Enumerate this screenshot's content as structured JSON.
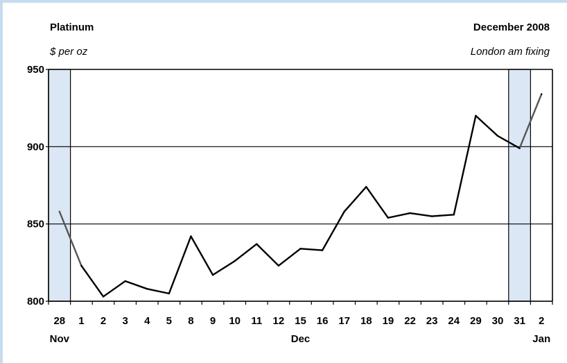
{
  "chart_data": {
    "type": "line",
    "title": "Platinum",
    "subtitle": "December 2008",
    "ylabel": "$ per oz",
    "note": "London am fixing",
    "ylim": [
      800,
      950
    ],
    "yticks": [
      800,
      850,
      900,
      950
    ],
    "categories": [
      "28",
      "1",
      "2",
      "3",
      "4",
      "5",
      "8",
      "9",
      "10",
      "11",
      "12",
      "15",
      "16",
      "17",
      "18",
      "19",
      "22",
      "23",
      "24",
      "29",
      "30",
      "31",
      "2"
    ],
    "month_labels": [
      {
        "label": "Nov",
        "index": 0
      },
      {
        "label": "Dec",
        "index": 11
      },
      {
        "label": "Jan",
        "index": 22
      }
    ],
    "series": [
      {
        "values": [
          858,
          823,
          803,
          813,
          808,
          805,
          842,
          817,
          826,
          837,
          823,
          834,
          833,
          858,
          874,
          854,
          857,
          855,
          856,
          920,
          907,
          899,
          934
        ]
      }
    ],
    "shaded_ranges": [
      [
        0,
        1
      ],
      [
        21,
        22
      ]
    ],
    "grid": true,
    "colors": {
      "line": "#000000",
      "line_shaded": "#555555",
      "shade_fill": "#dbe7f4",
      "frame": "#c6dcee"
    }
  }
}
